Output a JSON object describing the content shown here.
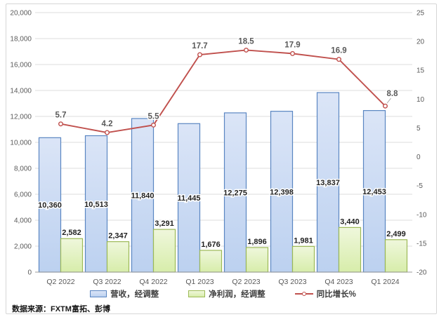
{
  "chart": {
    "source_note": "数据来源：FXTM富拓、彭博",
    "legend": {
      "items": [
        {
          "label": "营收，经调整"
        },
        {
          "label": "净利润，经调整"
        },
        {
          "label": "同比增长%"
        }
      ]
    }
  },
  "chart_data": {
    "type": "combo",
    "title": "",
    "categories": [
      "Q2 2022",
      "Q3 2022",
      "Q4 2022",
      "Q1 2023",
      "Q2 2023",
      "Q3 2023",
      "Q4 2023",
      "Q1 2024"
    ],
    "series": [
      {
        "name": "营收，经调整",
        "chart_type": "bar",
        "axis": "left",
        "values": [
          10360,
          10513,
          11840,
          11445,
          12275,
          12398,
          13837,
          12453
        ],
        "labels": [
          "10,360",
          "10,513",
          "11,840",
          "11,445",
          "12,275",
          "12,398",
          "13,837",
          "12,453"
        ],
        "label_position": "inside-center",
        "fill_top": "#dbe5f7",
        "fill_bottom": "#bcd1f0",
        "border": "#5a86c2"
      },
      {
        "name": "净利润，经调整",
        "chart_type": "bar",
        "axis": "left",
        "values": [
          2582,
          2347,
          3291,
          1676,
          1896,
          1981,
          3440,
          2499
        ],
        "labels": [
          "2,582",
          "2,347",
          "3,291",
          "1,676",
          "1,896",
          "1,981",
          "3,440",
          "2,499"
        ],
        "label_position": "outside-top",
        "fill_top": "#eff7dc",
        "fill_bottom": "#d7edaa",
        "border": "#9cb956"
      },
      {
        "name": "同比增长%",
        "chart_type": "line",
        "axis": "right",
        "values": [
          5.7,
          4.2,
          5.5,
          17.7,
          18.5,
          17.9,
          16.9,
          8.8
        ],
        "labels": [
          "5.7",
          "4.2",
          "5.5",
          "17.7",
          "18.5",
          "17.9",
          "16.9",
          "8.8"
        ],
        "color": "#c0504d",
        "marker": "circle",
        "label_dx": [
          0,
          0,
          0,
          0,
          0,
          0,
          0,
          10
        ],
        "label_dy": [
          -9,
          -9,
          -9,
          -9,
          -9,
          -9,
          -9,
          -14
        ],
        "last_label_leader": true
      }
    ],
    "left_axis": {
      "min": 0,
      "max": 20000,
      "step": 2000,
      "tick_labels": [
        "0",
        "2,000",
        "4,000",
        "6,000",
        "8,000",
        "10,000",
        "12,000",
        "14,000",
        "16,000",
        "18,000",
        "20,000"
      ]
    },
    "right_axis": {
      "min": -20,
      "max": 25,
      "step": 5,
      "tick_labels": [
        "25",
        "20",
        "15",
        "10",
        "5",
        "0",
        "-5",
        "-10",
        "-15",
        "-20"
      ]
    },
    "grid": true,
    "legend_position": "bottom",
    "colors": {
      "gridline": "#dcdcdc",
      "axis_line": "#9b9b9b",
      "tick_text": "#595959",
      "bar_label_text": "#1f1f1f",
      "line_label_text": "#595959",
      "leader_line": "#a6a6a6"
    }
  }
}
